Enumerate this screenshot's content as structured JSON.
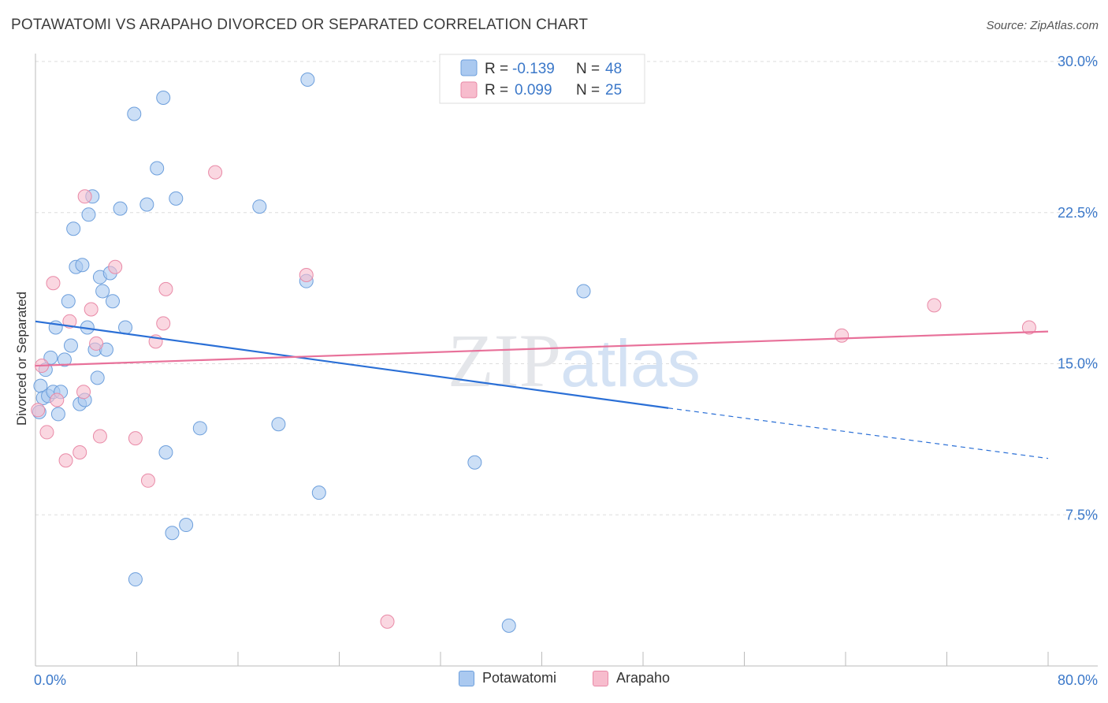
{
  "title": "POTAWATOMI VS ARAPAHO DIVORCED OR SEPARATED CORRELATION CHART",
  "source": "Source: ZipAtlas.com",
  "watermark": {
    "zip": "ZIP",
    "atlas": "atlas"
  },
  "colors": {
    "potawatomi_fill": "#aac9f0",
    "potawatomi_stroke": "#6d9fdc",
    "potawatomi_line": "#2a6fd6",
    "arapaho_fill": "#f7bccd",
    "arapaho_stroke": "#e98aa7",
    "arapaho_line": "#e8719a",
    "axis_label": "#3b78c9",
    "grid": "#dddddd"
  },
  "legend_top": [
    {
      "r_label": "R = ",
      "r_value": "-0.139",
      "n_label": "N = ",
      "n_value": "48"
    },
    {
      "r_label": "R = ",
      "r_value": "0.099",
      "n_label": "N = ",
      "n_value": "25"
    }
  ],
  "chart_data": {
    "type": "scatter",
    "ylabel": "Divorced or Separated",
    "xlim": [
      0,
      80
    ],
    "ylim": [
      0,
      30
    ],
    "x_tick_labels": [
      "0.0%",
      "80.0%"
    ],
    "y_ticks": [
      7.5,
      15.0,
      22.5,
      30.0
    ],
    "y_tick_labels": [
      "7.5%",
      "15.0%",
      "22.5%",
      "30.0%"
    ],
    "grid": true,
    "legend_position": "top-center",
    "series": [
      {
        "name": "Potawatomi",
        "points": [
          [
            0.3,
            12.6
          ],
          [
            0.4,
            13.9
          ],
          [
            0.6,
            13.3
          ],
          [
            0.8,
            14.7
          ],
          [
            1.0,
            13.4
          ],
          [
            1.2,
            15.3
          ],
          [
            1.4,
            13.6
          ],
          [
            1.6,
            16.8
          ],
          [
            1.8,
            12.5
          ],
          [
            2.0,
            13.6
          ],
          [
            2.3,
            15.2
          ],
          [
            2.6,
            18.1
          ],
          [
            2.8,
            15.9
          ],
          [
            3.0,
            21.7
          ],
          [
            3.2,
            19.8
          ],
          [
            3.5,
            13.0
          ],
          [
            3.7,
            19.9
          ],
          [
            3.9,
            13.2
          ],
          [
            4.1,
            16.8
          ],
          [
            4.2,
            22.4
          ],
          [
            4.5,
            23.3
          ],
          [
            4.7,
            15.7
          ],
          [
            4.9,
            14.3
          ],
          [
            5.1,
            19.3
          ],
          [
            5.3,
            18.6
          ],
          [
            5.6,
            15.7
          ],
          [
            5.9,
            19.5
          ],
          [
            6.1,
            18.1
          ],
          [
            6.7,
            22.7
          ],
          [
            7.1,
            16.8
          ],
          [
            7.8,
            27.4
          ],
          [
            7.9,
            4.3
          ],
          [
            8.8,
            22.9
          ],
          [
            9.6,
            24.7
          ],
          [
            10.1,
            28.2
          ],
          [
            10.3,
            10.6
          ],
          [
            10.8,
            6.6
          ],
          [
            11.1,
            23.2
          ],
          [
            11.9,
            7.0
          ],
          [
            13.0,
            11.8
          ],
          [
            17.7,
            22.8
          ],
          [
            19.2,
            12.0
          ],
          [
            21.4,
            19.1
          ],
          [
            21.5,
            29.1
          ],
          [
            22.4,
            8.6
          ],
          [
            34.7,
            10.1
          ],
          [
            37.4,
            2.0
          ],
          [
            43.3,
            18.6
          ]
        ]
      },
      {
        "name": "Arapaho",
        "points": [
          [
            0.2,
            12.7
          ],
          [
            0.5,
            14.9
          ],
          [
            0.9,
            11.6
          ],
          [
            1.4,
            19.0
          ],
          [
            1.7,
            13.2
          ],
          [
            2.4,
            10.2
          ],
          [
            2.7,
            17.1
          ],
          [
            3.5,
            10.6
          ],
          [
            3.8,
            13.6
          ],
          [
            3.9,
            23.3
          ],
          [
            4.4,
            17.7
          ],
          [
            4.8,
            16.0
          ],
          [
            5.1,
            11.4
          ],
          [
            6.3,
            19.8
          ],
          [
            7.9,
            11.3
          ],
          [
            8.9,
            9.2
          ],
          [
            9.5,
            16.1
          ],
          [
            10.1,
            17.0
          ],
          [
            10.3,
            18.7
          ],
          [
            14.2,
            24.5
          ],
          [
            21.4,
            19.4
          ],
          [
            27.8,
            2.2
          ],
          [
            63.7,
            16.4
          ],
          [
            71.0,
            17.9
          ],
          [
            78.5,
            16.8
          ]
        ]
      }
    ],
    "trendlines": [
      {
        "series": "Potawatomi",
        "x": [
          0,
          50
        ],
        "y": [
          17.1,
          12.8
        ],
        "dashed_to": [
          80,
          10.3
        ]
      },
      {
        "series": "Arapaho",
        "x": [
          0,
          80
        ],
        "y": [
          14.9,
          16.6
        ]
      }
    ]
  }
}
